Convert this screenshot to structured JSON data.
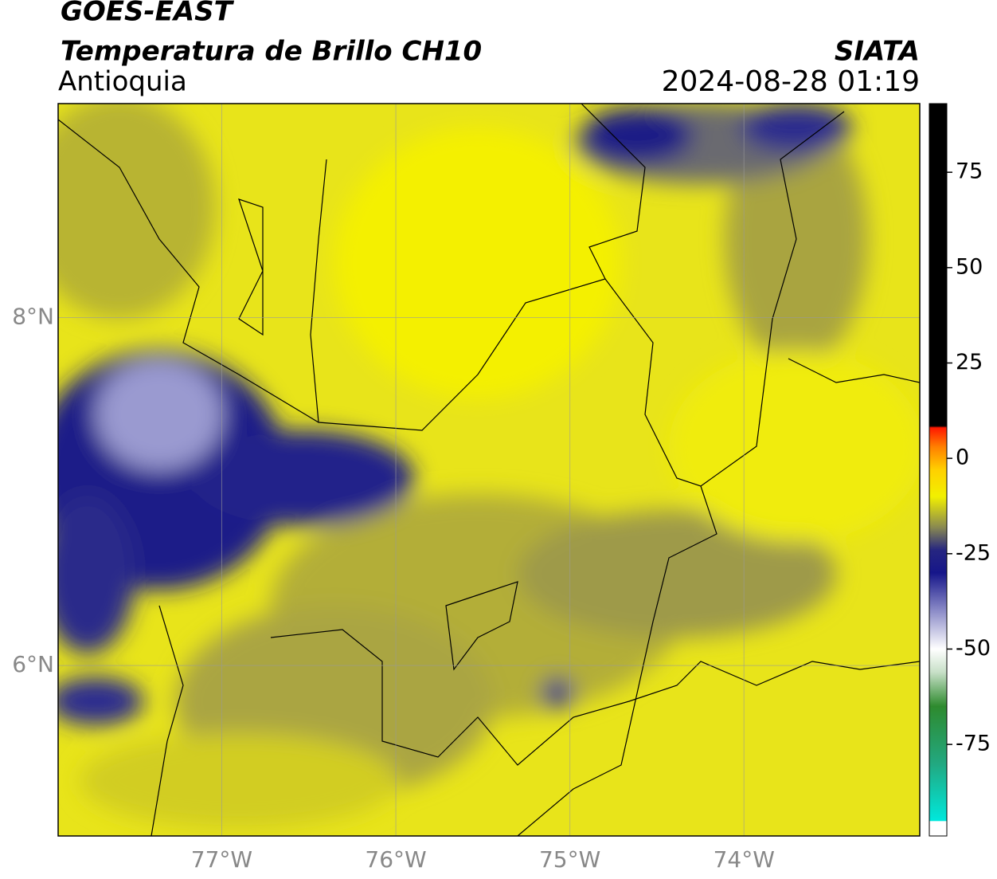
{
  "header": {
    "title": "GOES-EAST",
    "subtitle": "Temperatura de Brillo CH10",
    "region": "Antioquia",
    "agency": "SIATA",
    "timestamp": "2024-08-28 01:19"
  },
  "map": {
    "xlim": [
      -77.94,
      -72.99
    ],
    "ylim": [
      5.02,
      9.23
    ],
    "xticks": [
      {
        "value": -77,
        "label": "77°W"
      },
      {
        "value": -76,
        "label": "76°W"
      },
      {
        "value": -75,
        "label": "75°W"
      },
      {
        "value": -74,
        "label": "74°W"
      }
    ],
    "yticks": [
      {
        "value": 8,
        "label": "8°N"
      },
      {
        "value": 6,
        "label": "6°N"
      }
    ],
    "grid": true
  },
  "colorbar": {
    "clim": [
      -99,
      93
    ],
    "ticks": [
      75,
      50,
      25,
      0,
      -25,
      -50,
      -75
    ],
    "stops": [
      {
        "value": -99,
        "color": "#ffffff"
      },
      {
        "value": -95.2,
        "color": "#ffffff"
      },
      {
        "value": -95,
        "color": "#00e8dc"
      },
      {
        "value": -80,
        "color": "#22a880"
      },
      {
        "value": -65,
        "color": "#2e8a2e"
      },
      {
        "value": -56,
        "color": "#c8e0c8"
      },
      {
        "value": -50,
        "color": "#ffffff"
      },
      {
        "value": -40,
        "color": "#8c8cc8"
      },
      {
        "value": -30,
        "color": "#16168a"
      },
      {
        "value": -24,
        "color": "#262680"
      },
      {
        "value": -18,
        "color": "#8a8a50"
      },
      {
        "value": -10,
        "color": "#f2f000"
      },
      {
        "value": -3,
        "color": "#ffd000"
      },
      {
        "value": 3,
        "color": "#ff8000"
      },
      {
        "value": 8,
        "color": "#ff1800"
      },
      {
        "value": 8.5,
        "color": "#000000"
      },
      {
        "value": 93,
        "color": "#000000"
      }
    ]
  }
}
